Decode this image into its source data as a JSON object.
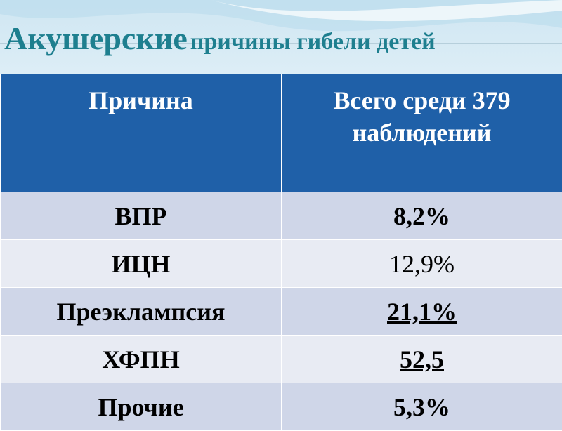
{
  "title": {
    "main": "Акушерские",
    "rest": "причины гибели детей"
  },
  "table": {
    "header": [
      "Причина",
      "Всего среди 379 наблюдений"
    ],
    "rows": [
      [
        "ВПР",
        "8,2%"
      ],
      [
        "ИЦН",
        "12,9%"
      ],
      [
        "Преэклампсия",
        "21,1%"
      ],
      [
        "ХФПН",
        "52,5"
      ],
      [
        "Прочие",
        "5,3%"
      ]
    ]
  }
}
